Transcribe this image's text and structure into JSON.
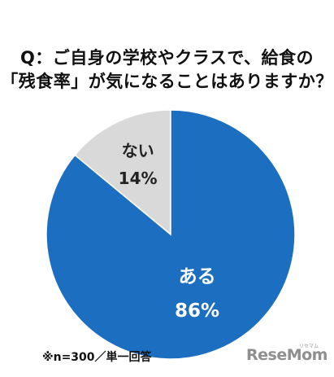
{
  "title": {
    "line1": "Q：ご自身の学校やクラスで、給食の",
    "line2": "「残食率」が気になることはありますか？"
  },
  "chart_data": {
    "type": "pie",
    "slices": [
      {
        "label": "ない",
        "value": 14,
        "display": "14%",
        "color": "#d9d9d9"
      },
      {
        "label": "ある",
        "value": 86,
        "display": "86%",
        "color": "#1c6fc0"
      }
    ]
  },
  "footnote": "※n=300／単一回答",
  "logo": {
    "text": "ReseMom",
    "sub": "リセマム"
  },
  "colors": {
    "yes": "#1c6fc0",
    "no": "#d9d9d9",
    "no_text": "#222222",
    "yes_text": "#ffffff"
  }
}
